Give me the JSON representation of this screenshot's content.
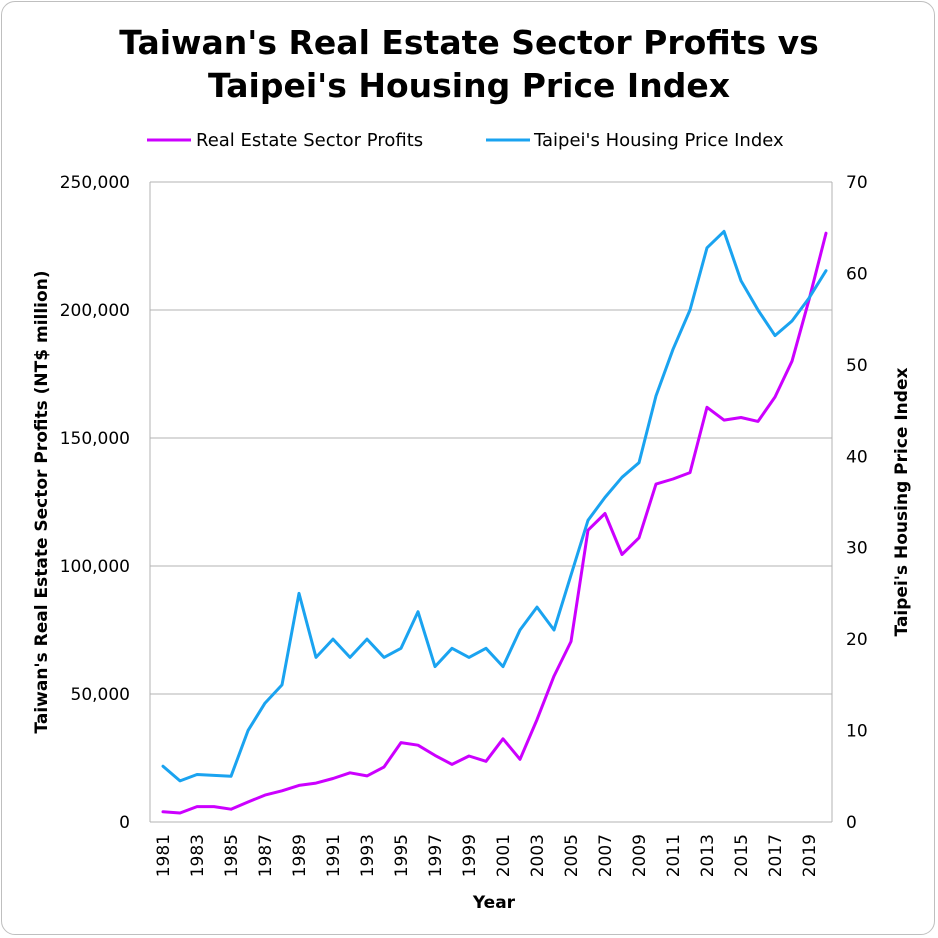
{
  "chart_data": {
    "type": "line",
    "title_lines": [
      "Taiwan's Real Estate Sector Profits vs",
      "Taipei's Housing Price Index"
    ],
    "xlabel": "Year",
    "ylabel_left": "Taiwan's Real Estate Sector Profits (NT$ million)",
    "ylabel_right": "Taipei's Housing Price Index",
    "ylim_left": [
      0,
      250000
    ],
    "ylim_right": [
      0,
      70
    ],
    "yticks_left": [
      "0",
      "50,000",
      "100,000",
      "150,000",
      "200,000",
      "250,000"
    ],
    "yticks_left_values": [
      0,
      50000,
      100000,
      150000,
      200000,
      250000
    ],
    "yticks_right": [
      "0",
      "10",
      "20",
      "30",
      "40",
      "50",
      "60",
      "70"
    ],
    "yticks_right_values": [
      0,
      10,
      20,
      30,
      40,
      50,
      60,
      70
    ],
    "x": [
      1981,
      1982,
      1983,
      1984,
      1985,
      1986,
      1987,
      1988,
      1989,
      1990,
      1991,
      1992,
      1993,
      1994,
      1995,
      1996,
      1997,
      1998,
      1999,
      2000,
      2001,
      2002,
      2003,
      2004,
      2005,
      2006,
      2007,
      2008,
      2009,
      2010,
      2011,
      2012,
      2013,
      2014,
      2015,
      2016,
      2017,
      2018,
      2019,
      2020
    ],
    "xtick_labels": [
      "1981",
      "1983",
      "1985",
      "1987",
      "1989",
      "1991",
      "1993",
      "1995",
      "1997",
      "1999",
      "2001",
      "2003",
      "2005",
      "2007",
      "2009",
      "2011",
      "2013",
      "2015",
      "2017",
      "2019"
    ],
    "xtick_values": [
      1981,
      1983,
      1985,
      1987,
      1989,
      1991,
      1993,
      1995,
      1997,
      1999,
      2001,
      2003,
      2005,
      2007,
      2009,
      2011,
      2013,
      2015,
      2017,
      2019
    ],
    "series": [
      {
        "name": "Real Estate Sector Profits",
        "axis": "left",
        "color": "#cc00ff",
        "values": [
          4000,
          3500,
          6000,
          6000,
          5000,
          7800,
          10500,
          12200,
          14300,
          15200,
          17000,
          19200,
          18000,
          21500,
          31000,
          30000,
          26000,
          22500,
          25800,
          23700,
          32500,
          24500,
          40000,
          57000,
          70500,
          114000,
          120500,
          104500,
          111000,
          132000,
          134000,
          136500,
          162000,
          157000,
          158000,
          156500,
          166000,
          180000,
          204000,
          230000
        ]
      },
      {
        "name": "Taipei's Housing Price Index",
        "axis": "right",
        "color": "#1aa3f0",
        "values": [
          6.1,
          4.5,
          5.2,
          5.1,
          5.0,
          10.0,
          13.0,
          15.0,
          25.0,
          18.0,
          20.0,
          18.0,
          20.0,
          18.0,
          19.0,
          23.0,
          17.0,
          19.0,
          18.0,
          19.0,
          17.0,
          21.0,
          23.5,
          21.0,
          27.0,
          33.0,
          35.5,
          37.7,
          39.3,
          46.6,
          51.7,
          56.0,
          62.8,
          64.6,
          59.2,
          56.0,
          53.2,
          54.8,
          57.3,
          60.3
        ]
      }
    ],
    "legend_position": "top",
    "grid": true
  }
}
